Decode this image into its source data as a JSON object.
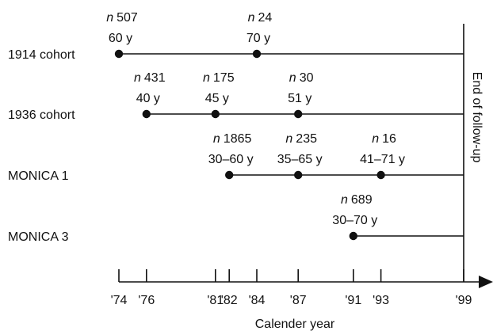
{
  "axis": {
    "title": "Calender year",
    "ticks": [
      "'74",
      "'76",
      "'81",
      "'82",
      "'84",
      "'87",
      "'91",
      "'93",
      "'99"
    ],
    "tick_years": [
      1974,
      1976,
      1981,
      1982,
      1984,
      1987,
      1991,
      1993,
      1999
    ]
  },
  "end_label": "End of follow-up",
  "cohorts": [
    {
      "label": "1914 cohort",
      "start_year": 1974,
      "end_year": 1999,
      "points": [
        {
          "year": 1974,
          "n": "507",
          "age": "60 y"
        },
        {
          "year": 1984,
          "n": "24",
          "age": "70 y"
        }
      ]
    },
    {
      "label": "1936 cohort",
      "start_year": 1976,
      "end_year": 1999,
      "points": [
        {
          "year": 1976,
          "n": "431",
          "age": "40 y"
        },
        {
          "year": 1981,
          "n": "175",
          "age": "45 y"
        },
        {
          "year": 1987,
          "n": "30",
          "age": "51 y"
        }
      ]
    },
    {
      "label": "MONICA 1",
      "start_year": 1982,
      "end_year": 1999,
      "points": [
        {
          "year": 1982,
          "n": "1865",
          "age": "30–60 y"
        },
        {
          "year": 1987,
          "n": "235",
          "age": "35–65 y"
        },
        {
          "year": 1993,
          "n": "16",
          "age": "41–71 y"
        }
      ]
    },
    {
      "label": "MONICA 3",
      "start_year": 1991,
      "end_year": 1999,
      "points": [
        {
          "year": 1991,
          "n": "689",
          "age": "30–70 y"
        }
      ]
    }
  ],
  "n_prefix": "n"
}
